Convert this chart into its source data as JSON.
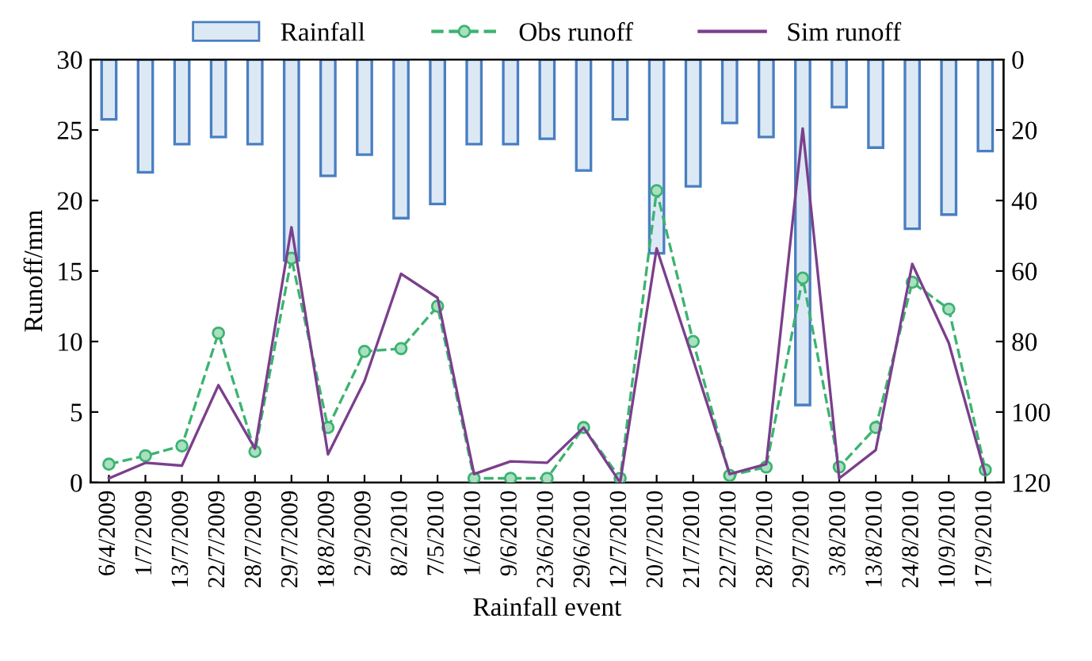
{
  "chart_data": {
    "type": "line",
    "xlabel": "Rainfall event",
    "ylabel": "Runoff/mm",
    "categories": [
      "6/4/2009",
      "1/7/2009",
      "13/7/2009",
      "22/7/2009",
      "28/7/2009",
      "29/7/2009",
      "18/8/2009",
      "2/9/2009",
      "8/2/2010",
      "7/5/2010",
      "1/6/2010",
      "9/6/2010",
      "23/6/2010",
      "29/6/2010",
      "12/7/2010",
      "20/7/2010",
      "21/7/2010",
      "22/7/2010",
      "28/7/2010",
      "29/7/2010",
      "3/8/2010",
      "13/8/2010",
      "24/8/2010",
      "10/9/2010",
      "17/9/2010"
    ],
    "series": [
      {
        "name": "Rainfall",
        "type": "bar",
        "axis": "y2",
        "color": "#4a7fc1",
        "values": [
          17,
          32,
          24,
          22,
          24,
          57,
          33,
          27,
          45,
          41,
          24,
          24,
          22.5,
          31.5,
          17,
          55,
          36,
          18,
          22,
          98,
          13.5,
          25,
          48,
          44,
          26
        ]
      },
      {
        "name": "Obs runoff",
        "color": "#3cb371",
        "marker": "circle",
        "line_style": "dashed",
        "values": [
          1.3,
          1.9,
          2.6,
          10.6,
          2.2,
          15.9,
          3.9,
          9.3,
          9.5,
          12.5,
          0.3,
          0.3,
          0.3,
          3.9,
          0.3,
          20.7,
          10.0,
          0.5,
          1.1,
          14.5,
          1.1,
          3.9,
          14.2,
          12.3,
          0.9
        ]
      },
      {
        "name": "Sim runoff",
        "color": "#7b3f8c",
        "marker": "none",
        "line_style": "solid",
        "values": [
          0.3,
          1.4,
          1.2,
          6.9,
          2.4,
          18.1,
          2.0,
          7.2,
          14.8,
          13.1,
          0.6,
          1.5,
          1.4,
          3.9,
          0,
          16.6,
          8.7,
          0.6,
          1.3,
          25.1,
          0.3,
          2.3,
          15.5,
          9.9,
          0.6
        ]
      }
    ],
    "ylim": [
      0,
      30
    ],
    "yticks": [
      0,
      5,
      10,
      15,
      20,
      25,
      30
    ],
    "y2lim": [
      120,
      0
    ],
    "y2ticks": [
      0,
      20,
      40,
      60,
      80,
      100,
      120
    ],
    "grid": false,
    "legend": "top"
  }
}
